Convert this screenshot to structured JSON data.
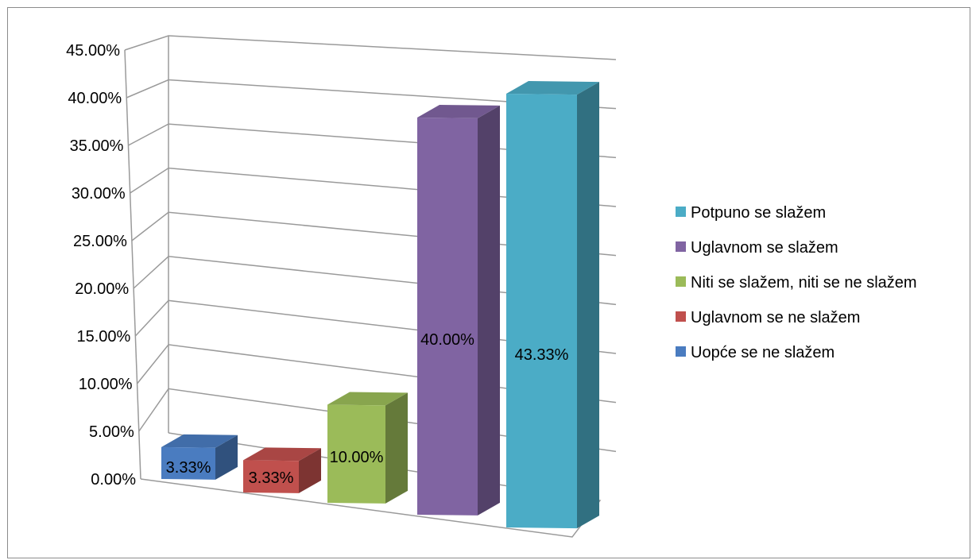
{
  "chart_data": {
    "type": "bar",
    "style": "3d-column",
    "categories": [
      "Uopće se ne slažem",
      "Uglavnom se ne slažem",
      "Niti se slažem, niti se ne slažem",
      "Uglavnom se slažem",
      "Potpuno se slažem"
    ],
    "values": [
      3.33,
      3.33,
      10.0,
      40.0,
      43.33
    ],
    "data_labels": [
      "3.33%",
      "3.33%",
      "10.00%",
      "40.00%",
      "43.33%"
    ],
    "colors": [
      "#4a7cc0",
      "#c0504d",
      "#9bbb59",
      "#8064a2",
      "#4bacc6"
    ],
    "title": "",
    "xlabel": "",
    "ylabel": "",
    "ylim": [
      0,
      45
    ],
    "yticks": [
      "0.00%",
      "5.00%",
      "10.00%",
      "15.00%",
      "20.00%",
      "25.00%",
      "30.00%",
      "35.00%",
      "40.00%",
      "45.00%"
    ],
    "grid": true,
    "legend_position": "right",
    "legend": [
      {
        "label": "Potpuno se slažem",
        "color": "#4bacc6"
      },
      {
        "label": "Uglavnom se slažem",
        "color": "#8064a2"
      },
      {
        "label": "Niti se slažem, niti se ne slažem",
        "color": "#9bbb59"
      },
      {
        "label": "Uglavnom se ne slažem",
        "color": "#c0504d"
      },
      {
        "label": "Uopće se ne slažem",
        "color": "#4a7cc0"
      }
    ]
  }
}
